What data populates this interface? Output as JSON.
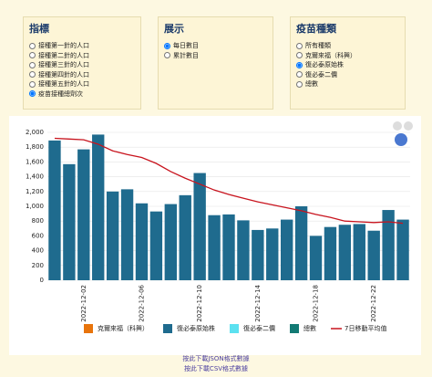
{
  "controls": [
    {
      "title": "指標",
      "options": [
        "接種第一針的人口",
        "接種第二針的人口",
        "接種第三針的人口",
        "接種第四針的人口",
        "接種第五針的人口",
        "疫苗接種總劑次"
      ],
      "selected": 5
    },
    {
      "title": "展示",
      "options": [
        "每日數目",
        "累計數目"
      ],
      "selected": 0
    },
    {
      "title": "疫苗種類",
      "options": [
        "所有種類",
        "克爾來福（科興）",
        "復必泰原始株",
        "復必泰二價",
        "總數"
      ],
      "selected": 2
    }
  ],
  "chart_data": {
    "type": "bar",
    "categories": [
      null,
      null,
      "2022-12-02",
      null,
      null,
      null,
      "2022-12-06",
      null,
      null,
      null,
      "2022-12-10",
      null,
      null,
      null,
      "2022-12-14",
      null,
      null,
      null,
      "2022-12-18",
      null,
      null,
      null,
      "2022-12-22",
      null,
      null
    ],
    "series": [
      {
        "name": "克爾來福（科興）",
        "color": "#e8740c",
        "values": [
          null,
          null,
          null,
          null,
          null,
          null,
          null,
          null,
          null,
          null,
          null,
          null,
          null,
          null,
          null,
          null,
          null,
          null,
          null,
          null,
          null,
          null,
          null,
          null,
          null
        ]
      },
      {
        "name": "復必泰原始株",
        "color": "#1f6b8e",
        "values": [
          1890,
          1570,
          1770,
          1970,
          1200,
          1230,
          1040,
          930,
          1030,
          1150,
          1450,
          880,
          890,
          810,
          680,
          700,
          820,
          1000,
          600,
          720,
          750,
          760,
          670,
          950,
          820
        ]
      },
      {
        "name": "復必泰二價",
        "color": "#5ce1f0",
        "values": [
          null,
          null,
          null,
          null,
          null,
          null,
          null,
          null,
          null,
          null,
          null,
          null,
          null,
          null,
          null,
          null,
          null,
          null,
          null,
          null,
          null,
          null,
          null,
          null,
          null
        ]
      },
      {
        "name": "總數",
        "color": "#127a74",
        "values": [
          null,
          null,
          null,
          null,
          null,
          null,
          null,
          null,
          null,
          null,
          null,
          null,
          null,
          null,
          null,
          null,
          null,
          null,
          null,
          null,
          null,
          null,
          null,
          null,
          null
        ]
      },
      {
        "name": "7日移動平均值",
        "color": "#c8141e",
        "type": "line",
        "values": [
          1920,
          1910,
          1900,
          1840,
          1750,
          1700,
          1660,
          1580,
          1470,
          1380,
          1300,
          1220,
          1160,
          1110,
          1060,
          1020,
          980,
          940,
          890,
          850,
          800,
          790,
          780,
          790,
          770
        ]
      }
    ],
    "ylim": [
      0,
      2000
    ],
    "yticks": [
      0,
      200,
      400,
      600,
      800,
      {
        "value": 1000,
        "label": "1,000"
      },
      {
        "value": 1200,
        "label": "1,200"
      },
      {
        "value": 1400,
        "label": "1,400"
      },
      {
        "value": 1600,
        "label": "1,600"
      },
      {
        "value": 1800,
        "label": "1,800"
      },
      {
        "value": 2000,
        "label": "2,000"
      }
    ],
    "grid": true
  },
  "footer": [
    "按此下載JSON格式數據",
    "按此下載CSV格式數據"
  ]
}
